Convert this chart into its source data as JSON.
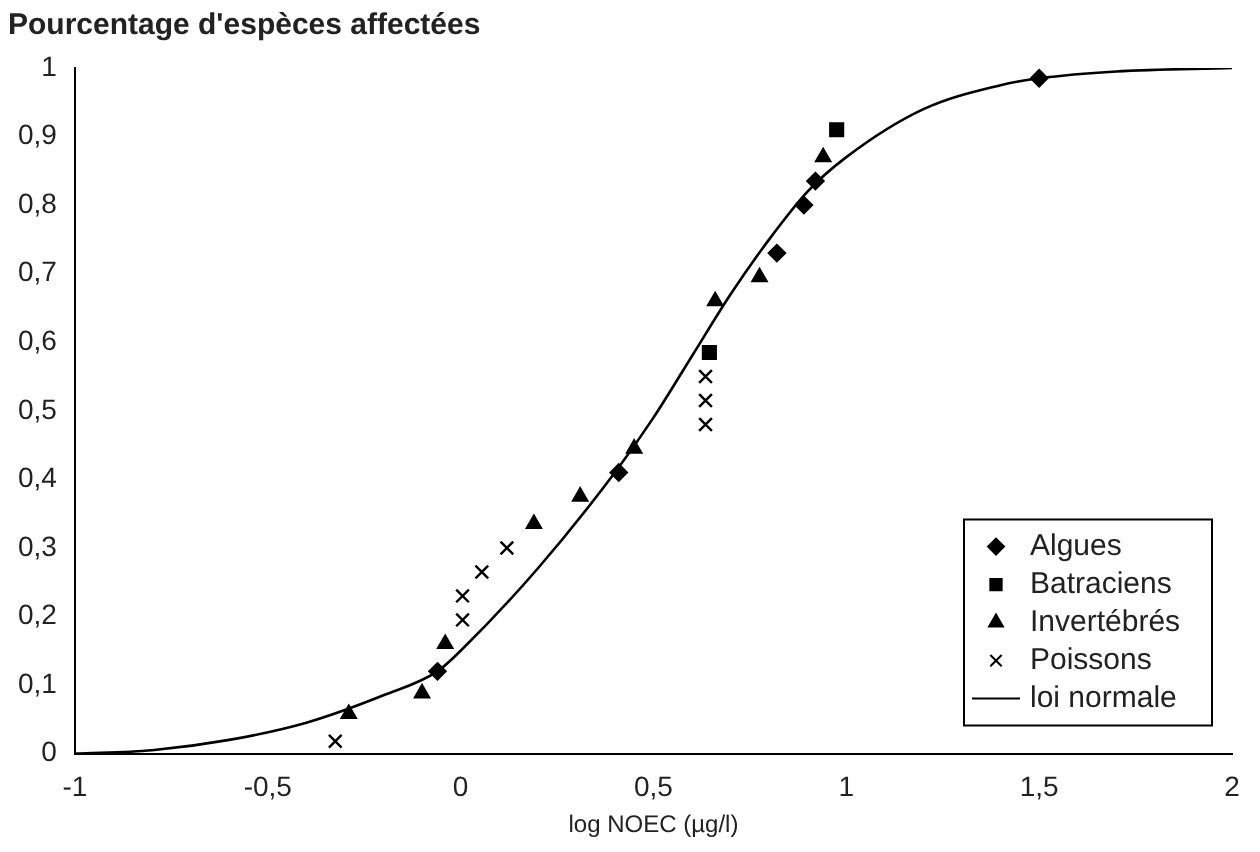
{
  "chart_data": {
    "type": "scatter",
    "ylabel": "Pourcentage d'espèces affectées",
    "xlabel": "log NOEC (µg/l)",
    "xlim": [
      -1,
      2
    ],
    "xticks": [
      -1,
      {
        "value": -0.5,
        "label": "-0,5"
      },
      0,
      {
        "value": 0.5,
        "label": "0,5"
      },
      1,
      {
        "value": 1.5,
        "label": "1,5"
      },
      2
    ],
    "ylim": [
      0,
      1
    ],
    "yticks": [
      0,
      {
        "value": 0.1,
        "label": "0,1"
      },
      {
        "value": 0.2,
        "label": "0,2"
      },
      {
        "value": 0.3,
        "label": "0,3"
      },
      {
        "value": 0.4,
        "label": "0,4"
      },
      {
        "value": 0.5,
        "label": "0,5"
      },
      {
        "value": 0.6,
        "label": "0,6"
      },
      {
        "value": 0.7,
        "label": "0,7"
      },
      {
        "value": 0.8,
        "label": "0,8"
      },
      {
        "value": 0.9,
        "label": "0,9"
      },
      1
    ],
    "grid": false,
    "legend": "bottom right",
    "series": [
      {
        "name": "Algues",
        "marker": "diamond",
        "color": "#000000",
        "x": [
          -0.06,
          0.41,
          0.82,
          0.89,
          0.92,
          1.5
        ],
        "values": [
          0.12,
          0.41,
          0.73,
          0.8,
          0.835,
          0.985
        ]
      },
      {
        "name": "Batraciens",
        "marker": "square",
        "color": "#000000",
        "x": [
          0.645,
          0.975
        ],
        "values": [
          0.585,
          0.91
        ]
      },
      {
        "name": "Invertébrés",
        "marker": "triangle",
        "color": "#000000",
        "x": [
          -0.29,
          -0.1,
          -0.04,
          0.19,
          0.31,
          0.45,
          0.66,
          0.775,
          0.94
        ],
        "values": [
          0.058,
          0.088,
          0.16,
          0.335,
          0.375,
          0.445,
          0.66,
          0.695,
          0.87
        ]
      },
      {
        "name": "Poissons",
        "marker": "cross",
        "color": "#000000",
        "x": [
          -0.325,
          0.005,
          0.005,
          0.055,
          0.12,
          0.635,
          0.635,
          0.635
        ],
        "values": [
          0.018,
          0.195,
          0.23,
          0.265,
          0.3,
          0.55,
          0.515,
          0.48
        ]
      },
      {
        "name": "loi normale",
        "type": "line",
        "marker": "none",
        "line_style": "solid",
        "color": "#000000",
        "x": [
          -1,
          -0.8,
          -0.6,
          -0.4,
          -0.2,
          -0.06,
          0,
          0.2,
          0.4,
          0.5,
          0.6,
          0.7,
          0.8,
          0.9,
          1,
          1.2,
          1.4,
          1.5,
          1.7,
          2
        ],
        "values": [
          0,
          0.005,
          0.02,
          0.045,
          0.085,
          0.12,
          0.15,
          0.27,
          0.41,
          0.49,
          0.58,
          0.67,
          0.75,
          0.82,
          0.87,
          0.94,
          0.975,
          0.985,
          0.995,
          1
        ]
      }
    ]
  }
}
